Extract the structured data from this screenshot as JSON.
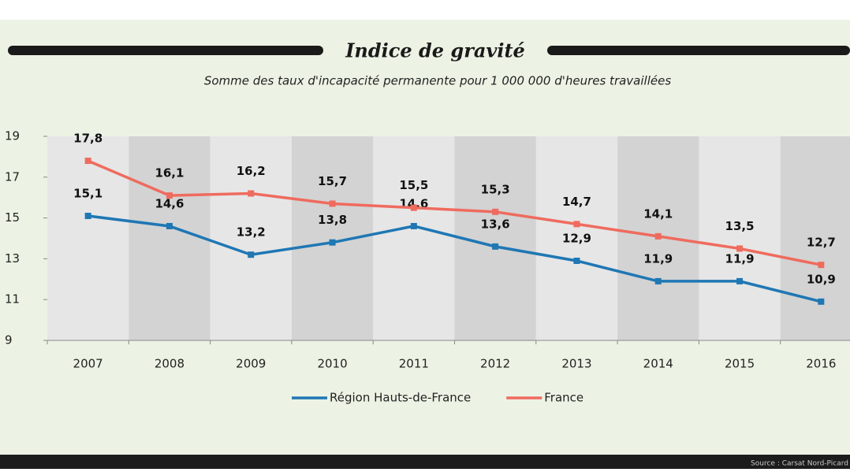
{
  "chart_data": {
    "type": "line",
    "title": "Indice de gravité",
    "subtitle": "Somme des taux d'incapacité permanente pour 1 000  000 d'heures travaillées",
    "source": "Source : Carsat Nord-Picard",
    "categories": [
      "2007",
      "2008",
      "2009",
      "2010",
      "2011",
      "2012",
      "2013",
      "2014",
      "2015",
      "2016"
    ],
    "series": [
      {
        "name": "Région Hauts-de-France",
        "color": "#1f77b4",
        "values": [
          15.1,
          14.6,
          13.2,
          13.8,
          14.6,
          13.6,
          12.9,
          11.9,
          11.9,
          10.9
        ],
        "value_labels": [
          "15,1",
          "14,6",
          "13,2",
          "13,8",
          "14,6",
          "13,6",
          "12,9",
          "11,9",
          "11,9",
          "10,9"
        ]
      },
      {
        "name": "France",
        "color": "#ef6b5e",
        "values": [
          17.8,
          16.1,
          16.2,
          15.7,
          15.5,
          15.3,
          14.7,
          14.1,
          13.5,
          12.7
        ],
        "value_labels": [
          "17,8",
          "16,1",
          "16,2",
          "15,7",
          "15,5",
          "15,3",
          "14,7",
          "14,1",
          "13,5",
          "12,7"
        ]
      }
    ],
    "ylim": [
      9,
      19
    ],
    "yticks": [
      9,
      11,
      13,
      15,
      17,
      19
    ]
  }
}
